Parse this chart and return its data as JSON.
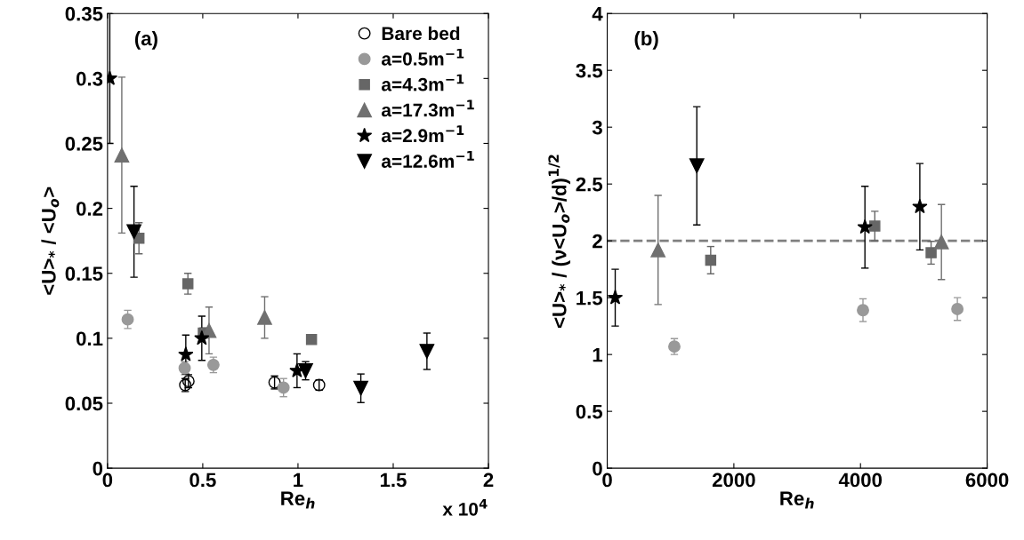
{
  "chart_data": [
    {
      "type": "scatter",
      "xlabel": "Re$_{h}$",
      "ylabel": "<U>$_{*}$ / <U$_{o}$>",
      "annotations": [
        "(a)",
        "x 10$^{4}$"
      ],
      "xlim": [
        0,
        2
      ],
      "xticks": [
        0,
        0.5,
        1,
        1.5,
        2
      ],
      "ylim": [
        0,
        0.35
      ],
      "yticks": [
        0,
        0.05,
        0.1,
        0.15,
        0.2,
        0.25,
        0.3,
        0.35
      ],
      "grid": false,
      "legend": "top right",
      "series": [
        {
          "name": "Bare bed",
          "color": "#000000",
          "marker": "open_circle",
          "x": [
            0.408,
            0.425,
            0.877,
            1.111
          ],
          "values": [
            0.064,
            0.067,
            0.066,
            0.064
          ],
          "errors": [
            0.005,
            0.005,
            0.005,
            0.004
          ]
        },
        {
          "name": "a=0.5m$^{−1}$",
          "color": "#999999",
          "marker": "circle",
          "x": [
            0.106,
            0.405,
            0.556,
            0.924
          ],
          "values": [
            0.1145,
            0.077,
            0.0795,
            0.062
          ],
          "errors": [
            0.007,
            0.005,
            0.006,
            0.007
          ]
        },
        {
          "name": "a=4.3m$^{−1}$",
          "color": "#666666",
          "marker": "square",
          "x": [
            0.165,
            0.422,
            0.503,
            1.071
          ],
          "values": [
            0.177,
            0.142,
            0.104,
            0.099
          ],
          "errors": [
            0.012,
            0.008,
            0.004,
            0.003
          ]
        },
        {
          "name": "a=17.3m$^{−1}$",
          "color": "#707070",
          "marker": "triangle",
          "x": [
            0.075,
            0.533,
            0.825
          ],
          "values": [
            0.241,
            0.106,
            0.116
          ],
          "errors": [
            0.06,
            0.018,
            0.016
          ]
        },
        {
          "name": "a=2.9m$^{−1}$",
          "color": "#000000",
          "marker": "star",
          "x": [
            0.012,
            0.411,
            0.495,
            0.995
          ],
          "values": [
            0.3,
            0.0875,
            0.1,
            0.075
          ],
          "errors": [
            0.05,
            0.015,
            0.017,
            0.013
          ]
        },
        {
          "name": "a=12.6m$^{−1}$",
          "color": "#000000",
          "marker": "triangle_down",
          "x": [
            0.139,
            1.04,
            1.33,
            1.677
          ],
          "values": [
            0.182,
            0.075,
            0.0615,
            0.09
          ],
          "errors": [
            0.035,
            0.007,
            0.011,
            0.014
          ]
        }
      ]
    },
    {
      "type": "scatter",
      "xlabel": "Re$_{h}$",
      "ylabel": "<U>$_{*}$ / (ν<U$_{o}$>/d)$^{1/2}$",
      "annotations": [
        "(b)"
      ],
      "xlim": [
        0,
        6000
      ],
      "xticks": [
        0,
        2000,
        4000,
        6000
      ],
      "ylim": [
        0,
        4
      ],
      "yticks": [
        0,
        0.5,
        1,
        1.5,
        2,
        2.5,
        3,
        3.5,
        4
      ],
      "grid": false,
      "ref_lines": [
        {
          "axis": "y",
          "value": 2,
          "color": "#808080",
          "line_style": "dashed"
        }
      ],
      "series": [
        {
          "color": "#999999",
          "marker": "circle",
          "x": [
            1060,
            4039,
            5530
          ],
          "values": [
            1.07,
            1.39,
            1.4
          ],
          "errors": [
            0.07,
            0.1,
            0.1
          ]
        },
        {
          "color": "#666666",
          "marker": "square",
          "x": [
            1634,
            4226,
            5115
          ],
          "values": [
            1.83,
            2.13,
            1.895
          ],
          "errors": [
            0.12,
            0.13,
            0.1
          ]
        },
        {
          "color": "#707070",
          "marker": "triangle",
          "x": [
            803,
            5278
          ],
          "values": [
            1.92,
            1.99
          ],
          "errors": [
            0.48,
            0.33
          ]
        },
        {
          "color": "#000000",
          "marker": "star",
          "x": [
            126,
            4070,
            4937
          ],
          "values": [
            1.5,
            2.12,
            2.3
          ],
          "errors": [
            0.25,
            0.36,
            0.38
          ]
        },
        {
          "color": "#000000",
          "marker": "triangle_down",
          "x": [
            1415
          ],
          "values": [
            2.66
          ],
          "errors": [
            0.52
          ]
        }
      ]
    }
  ]
}
